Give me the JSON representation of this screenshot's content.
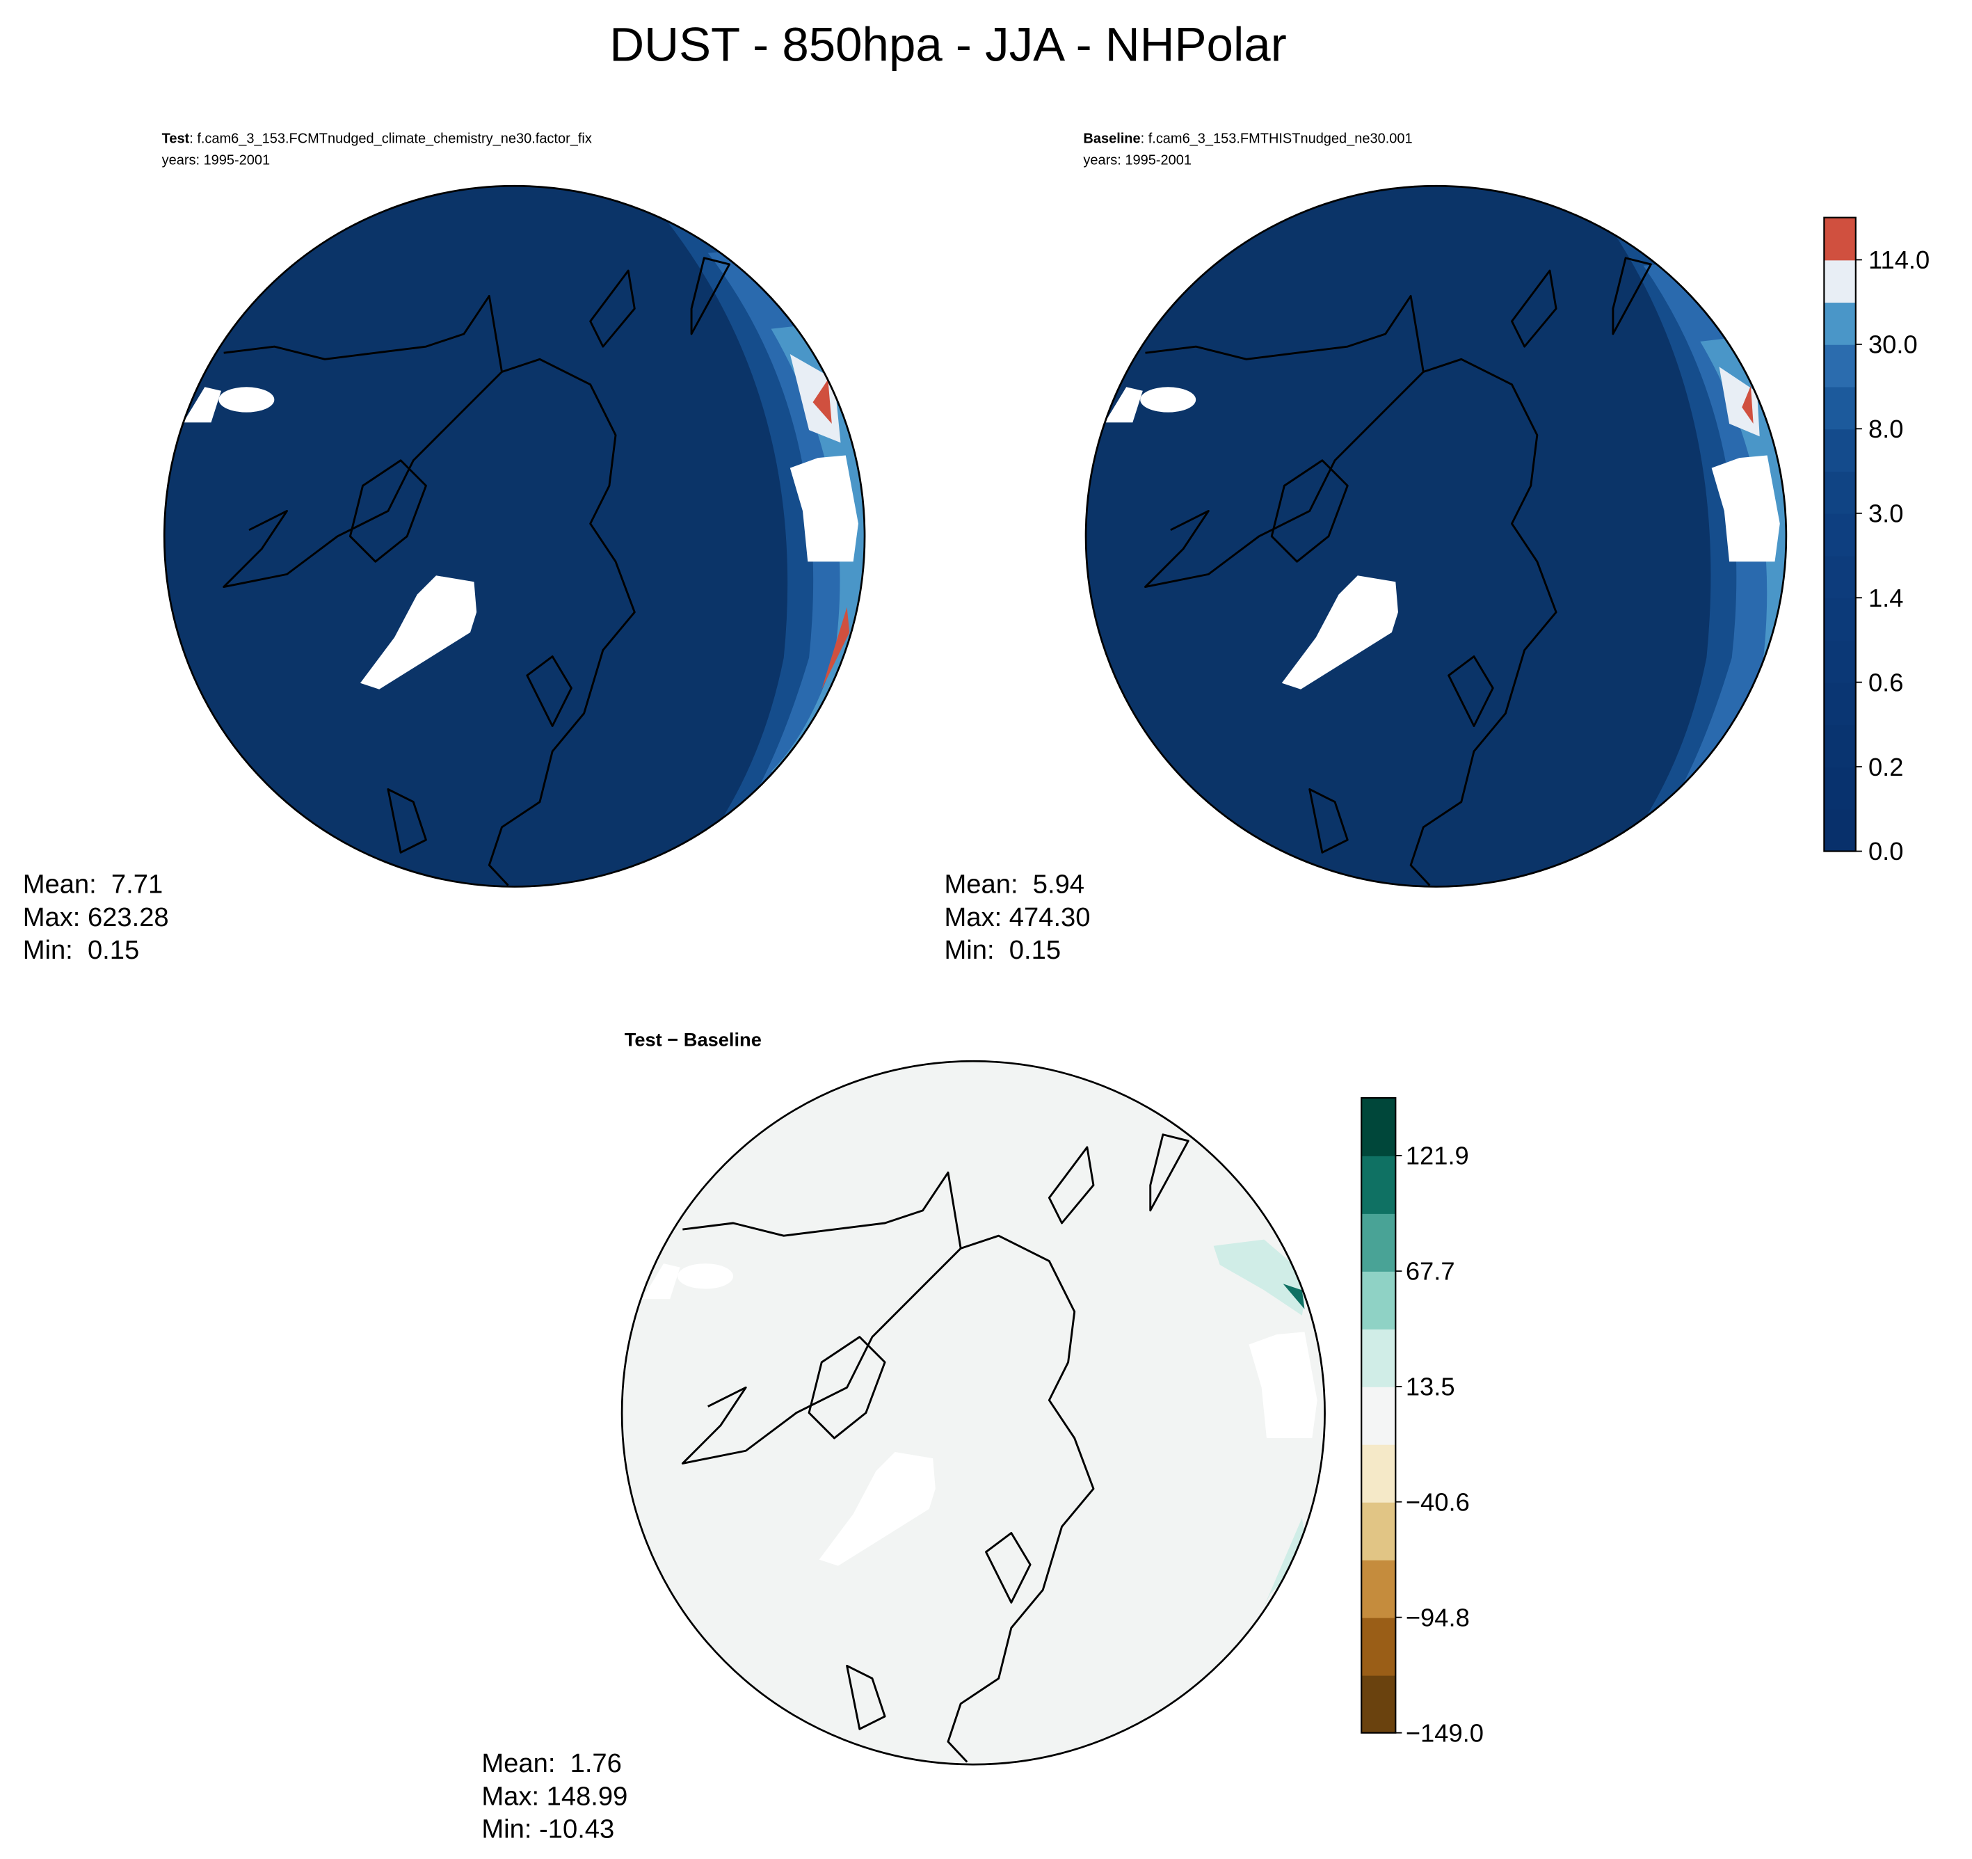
{
  "title": "DUST - 850hpa - JJA - NHPolar",
  "panels": [
    {
      "label": "Test",
      "case": ": f.cam6_3_153.FCMTnudged_climate_chemistry_ne30.factor_fix",
      "years": "years: 1995-2001",
      "stats": [
        "Mean:  7.71",
        "Max: 623.28",
        "Min:  0.15"
      ]
    },
    {
      "label": "Baseline",
      "case": ": f.cam6_3_153.FMTHISTnudged_ne30.001",
      "years": "years: 1995-2001",
      "stats": [
        "Mean:  5.94",
        "Max: 474.30",
        "Min:  0.15"
      ]
    },
    {
      "label": "Test − Baseline",
      "stats": [
        "Mean:  1.76",
        "Max: 148.99",
        "Min: -10.43"
      ]
    }
  ],
  "colorbars": [
    {
      "colors": [
        "#08306b",
        "#08326e",
        "#093470",
        "#0a3673",
        "#0b3876",
        "#0c3a79",
        "#0d3c7c",
        "#0e3f80",
        "#104484",
        "#144b8c",
        "#1c5a9c",
        "#2b6cae",
        "#4a96c8",
        "#e8eef5",
        "#d0503f"
      ],
      "ticks": [
        {
          "value": 0,
          "label": "0.0"
        },
        0.2,
        0.6,
        1.4,
        {
          "value": 3,
          "label": "3.0"
        },
        {
          "value": 8,
          "label": "8.0"
        },
        {
          "value": 30,
          "label": "30.0"
        },
        {
          "value": 114,
          "label": "114.0"
        }
      ]
    },
    {
      "lim": [
        -149,
        149
      ],
      "colors": [
        "#6a420e",
        "#9a5e17",
        "#c58c3d",
        "#e1c585",
        "#f5e9c8",
        "#f4f5f5",
        "#d0ede7",
        "#8fd2c5",
        "#49a396",
        "#0f7163",
        "#00473a"
      ],
      "ticks": [
        {
          "value": -149,
          "label": "−149.0"
        },
        {
          "value": -94.8,
          "label": "−94.8"
        },
        {
          "value": -40.6,
          "label": "−40.6"
        },
        13.5,
        67.7,
        121.9
      ]
    }
  ]
}
